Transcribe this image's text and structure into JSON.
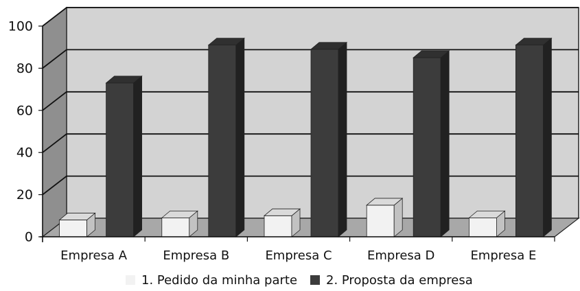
{
  "chart_data": {
    "type": "bar",
    "categories": [
      "Empresa A",
      "Empresa B",
      "Empresa C",
      "Empresa D",
      "Empresa E"
    ],
    "series": [
      {
        "name": "1.  Pedido da minha parte",
        "values": [
          8,
          9,
          10,
          15,
          9
        ],
        "color": "#f2f2f2"
      },
      {
        "name": "2.  Proposta da empresa",
        "values": [
          73,
          91,
          89,
          85,
          91
        ],
        "color": "#3c3c3c"
      }
    ],
    "ylim": [
      0,
      100
    ],
    "yticks": [
      "0",
      "20",
      "40",
      "60",
      "80",
      "100"
    ],
    "grid": true,
    "three_d": true,
    "legend_position": "bottom",
    "wall_color": "#d3d3d3",
    "floor_color": "#a8a8a8"
  }
}
